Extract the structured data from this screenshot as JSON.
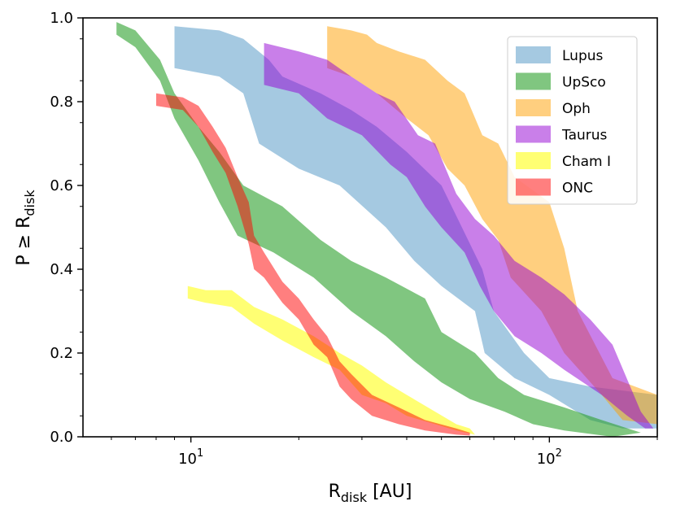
{
  "chart_data": {
    "type": "area",
    "title": "",
    "xlabel": {
      "main": "R",
      "sub": "disk",
      "suffix": " [AU]"
    },
    "ylabel": {
      "main": "P ≥ R",
      "sub": "disk"
    },
    "xscale": "log",
    "xlim": [
      5,
      200
    ],
    "ylim": [
      0,
      1.0
    ],
    "xticks": [
      {
        "value": 10,
        "base": "10",
        "exp": "1"
      },
      {
        "value": 100,
        "base": "10",
        "exp": "2"
      }
    ],
    "yticks": [
      {
        "value": 0.0,
        "label": "0.0"
      },
      {
        "value": 0.2,
        "label": "0.2"
      },
      {
        "value": 0.4,
        "label": "0.4"
      },
      {
        "value": 0.6,
        "label": "0.6"
      },
      {
        "value": 0.8,
        "label": "0.8"
      },
      {
        "value": 1.0,
        "label": "1.0"
      }
    ],
    "legend_position": "top-right",
    "series": [
      {
        "name": "Lupus",
        "color": "#1f77b4",
        "opacity": 0.4,
        "upper": [
          [
            9.0,
            0.98
          ],
          [
            12,
            0.97
          ],
          [
            14,
            0.95
          ],
          [
            16.5,
            0.9
          ],
          [
            18,
            0.86
          ],
          [
            23,
            0.82
          ],
          [
            28,
            0.78
          ],
          [
            33,
            0.74
          ],
          [
            40,
            0.68
          ],
          [
            50,
            0.6
          ],
          [
            57,
            0.5
          ],
          [
            65,
            0.4
          ],
          [
            70,
            0.3
          ],
          [
            85,
            0.2
          ],
          [
            100,
            0.14
          ],
          [
            130,
            0.12
          ],
          [
            200,
            0.1
          ]
        ],
        "lower": [
          [
            9.0,
            0.88
          ],
          [
            12,
            0.86
          ],
          [
            14,
            0.82
          ],
          [
            15.5,
            0.7
          ],
          [
            20,
            0.64
          ],
          [
            26,
            0.6
          ],
          [
            35,
            0.5
          ],
          [
            42,
            0.42
          ],
          [
            50,
            0.36
          ],
          [
            62,
            0.3
          ],
          [
            66,
            0.2
          ],
          [
            80,
            0.14
          ],
          [
            100,
            0.1
          ],
          [
            130,
            0.04
          ],
          [
            160,
            0.02
          ],
          [
            200,
            0.02
          ]
        ]
      },
      {
        "name": "UpSco",
        "color": "#2ca02c",
        "opacity": 0.6,
        "upper": [
          [
            6.2,
            0.99
          ],
          [
            7,
            0.97
          ],
          [
            8.2,
            0.9
          ],
          [
            9,
            0.82
          ],
          [
            10.5,
            0.74
          ],
          [
            12,
            0.68
          ],
          [
            14,
            0.6
          ],
          [
            18,
            0.55
          ],
          [
            23,
            0.47
          ],
          [
            28,
            0.42
          ],
          [
            35,
            0.38
          ],
          [
            45,
            0.33
          ],
          [
            50,
            0.25
          ],
          [
            62,
            0.2
          ],
          [
            72,
            0.14
          ],
          [
            85,
            0.1
          ],
          [
            110,
            0.07
          ],
          [
            140,
            0.04
          ],
          [
            180,
            0.01
          ]
        ],
        "lower": [
          [
            6.2,
            0.96
          ],
          [
            7,
            0.93
          ],
          [
            8.2,
            0.85
          ],
          [
            9,
            0.76
          ],
          [
            10.5,
            0.66
          ],
          [
            12,
            0.56
          ],
          [
            13.5,
            0.48
          ],
          [
            17,
            0.44
          ],
          [
            22,
            0.38
          ],
          [
            28,
            0.3
          ],
          [
            35,
            0.24
          ],
          [
            42,
            0.18
          ],
          [
            50,
            0.13
          ],
          [
            60,
            0.09
          ],
          [
            75,
            0.06
          ],
          [
            90,
            0.03
          ],
          [
            110,
            0.015
          ],
          [
            150,
            0.0
          ]
        ]
      },
      {
        "name": "Oph",
        "color": "#ff9f00",
        "opacity": 0.5,
        "upper": [
          [
            24,
            0.98
          ],
          [
            28,
            0.97
          ],
          [
            31,
            0.96
          ],
          [
            33,
            0.94
          ],
          [
            38,
            0.92
          ],
          [
            45,
            0.9
          ],
          [
            52,
            0.85
          ],
          [
            58,
            0.82
          ],
          [
            65,
            0.72
          ],
          [
            72,
            0.7
          ],
          [
            80,
            0.62
          ],
          [
            100,
            0.56
          ],
          [
            110,
            0.45
          ],
          [
            120,
            0.3
          ],
          [
            150,
            0.14
          ],
          [
            200,
            0.1
          ]
        ],
        "lower": [
          [
            24,
            0.88
          ],
          [
            28,
            0.86
          ],
          [
            33,
            0.82
          ],
          [
            40,
            0.76
          ],
          [
            46,
            0.72
          ],
          [
            52,
            0.64
          ],
          [
            58,
            0.6
          ],
          [
            65,
            0.52
          ],
          [
            72,
            0.47
          ],
          [
            78,
            0.38
          ],
          [
            95,
            0.3
          ],
          [
            110,
            0.2
          ],
          [
            140,
            0.1
          ],
          [
            160,
            0.04
          ],
          [
            200,
            0.03
          ]
        ]
      },
      {
        "name": "Taurus",
        "color": "#9400d3",
        "opacity": 0.5,
        "upper": [
          [
            16,
            0.94
          ],
          [
            20,
            0.92
          ],
          [
            24,
            0.9
          ],
          [
            28,
            0.86
          ],
          [
            33,
            0.82
          ],
          [
            37,
            0.8
          ],
          [
            43,
            0.72
          ],
          [
            48,
            0.7
          ],
          [
            55,
            0.58
          ],
          [
            62,
            0.52
          ],
          [
            70,
            0.48
          ],
          [
            80,
            0.42
          ],
          [
            95,
            0.38
          ],
          [
            110,
            0.34
          ],
          [
            130,
            0.28
          ],
          [
            150,
            0.22
          ],
          [
            180,
            0.06
          ],
          [
            195,
            0.02
          ]
        ],
        "lower": [
          [
            16,
            0.84
          ],
          [
            20,
            0.82
          ],
          [
            24,
            0.76
          ],
          [
            30,
            0.72
          ],
          [
            36,
            0.65
          ],
          [
            40,
            0.62
          ],
          [
            45,
            0.55
          ],
          [
            50,
            0.5
          ],
          [
            58,
            0.44
          ],
          [
            64,
            0.36
          ],
          [
            70,
            0.3
          ],
          [
            80,
            0.24
          ],
          [
            95,
            0.2
          ],
          [
            110,
            0.16
          ],
          [
            140,
            0.1
          ],
          [
            165,
            0.05
          ],
          [
            185,
            0.02
          ]
        ]
      },
      {
        "name": "Cham I",
        "color": "#ffff00",
        "opacity": 0.55,
        "upper": [
          [
            9.8,
            0.36
          ],
          [
            11,
            0.35
          ],
          [
            13,
            0.35
          ],
          [
            15,
            0.31
          ],
          [
            18,
            0.28
          ],
          [
            22,
            0.24
          ],
          [
            26,
            0.2
          ],
          [
            30,
            0.17
          ],
          [
            35,
            0.13
          ],
          [
            40,
            0.1
          ],
          [
            48,
            0.06
          ],
          [
            55,
            0.03
          ],
          [
            60,
            0.02
          ],
          [
            62,
            0.005
          ]
        ],
        "lower": [
          [
            9.8,
            0.33
          ],
          [
            11,
            0.32
          ],
          [
            13,
            0.31
          ],
          [
            15,
            0.27
          ],
          [
            18,
            0.23
          ],
          [
            22,
            0.19
          ],
          [
            26,
            0.16
          ],
          [
            30,
            0.1
          ],
          [
            35,
            0.08
          ],
          [
            40,
            0.05
          ],
          [
            48,
            0.03
          ],
          [
            55,
            0.015
          ],
          [
            62,
            0.005
          ]
        ]
      },
      {
        "name": "ONC",
        "color": "#ff0000",
        "opacity": 0.5,
        "upper": [
          [
            8.0,
            0.82
          ],
          [
            9.5,
            0.81
          ],
          [
            10.5,
            0.79
          ],
          [
            11.5,
            0.74
          ],
          [
            12.5,
            0.69
          ],
          [
            13.5,
            0.62
          ],
          [
            14.5,
            0.56
          ],
          [
            15,
            0.48
          ],
          [
            16,
            0.44
          ],
          [
            18,
            0.37
          ],
          [
            20,
            0.33
          ],
          [
            22,
            0.28
          ],
          [
            24,
            0.24
          ],
          [
            26,
            0.18
          ],
          [
            28,
            0.15
          ],
          [
            32,
            0.1
          ],
          [
            38,
            0.07
          ],
          [
            45,
            0.04
          ],
          [
            55,
            0.02
          ],
          [
            60,
            0.01
          ]
        ],
        "lower": [
          [
            8.0,
            0.79
          ],
          [
            9.5,
            0.78
          ],
          [
            10.5,
            0.74
          ],
          [
            11.5,
            0.68
          ],
          [
            12.5,
            0.63
          ],
          [
            13.5,
            0.55
          ],
          [
            14.5,
            0.46
          ],
          [
            15,
            0.4
          ],
          [
            16,
            0.38
          ],
          [
            18,
            0.32
          ],
          [
            20,
            0.28
          ],
          [
            22,
            0.22
          ],
          [
            24,
            0.19
          ],
          [
            26,
            0.12
          ],
          [
            28,
            0.09
          ],
          [
            32,
            0.05
          ],
          [
            38,
            0.03
          ],
          [
            45,
            0.015
          ],
          [
            55,
            0.005
          ],
          [
            60,
            0.003
          ]
        ]
      }
    ]
  }
}
